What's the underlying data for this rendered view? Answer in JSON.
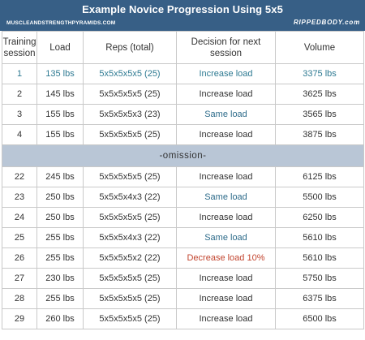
{
  "banner": {
    "title": "Example Novice Progression Using 5x5",
    "left_text": "MUSCLEANDSTRENGTHPYRAMIDS.COM",
    "right_text": "RIPPEDBODY.com"
  },
  "table": {
    "headers": [
      "Training session",
      "Load",
      "Reps (total)",
      "Decision for next session",
      "Volume"
    ],
    "rows_top": [
      {
        "session": "1",
        "load": "135 lbs",
        "reps": "5x5x5x5x5 (25)",
        "decision": "Increase load",
        "volume": "3375 lbs"
      },
      {
        "session": "2",
        "load": "145 lbs",
        "reps": "5x5x5x5x5 (25)",
        "decision": "Increase load",
        "volume": "3625 lbs"
      },
      {
        "session": "3",
        "load": "155 lbs",
        "reps": "5x5x5x5x3 (23)",
        "decision": "Same load",
        "volume": "3565 lbs"
      },
      {
        "session": "4",
        "load": "155 lbs",
        "reps": "5x5x5x5x5 (25)",
        "decision": "Increase load",
        "volume": "3875 lbs"
      }
    ],
    "omission_label": "-omission-",
    "rows_bottom": [
      {
        "session": "22",
        "load": "245 lbs",
        "reps": "5x5x5x5x5 (25)",
        "decision": "Increase load",
        "volume": "6125 lbs"
      },
      {
        "session": "23",
        "load": "250 lbs",
        "reps": "5x5x5x4x3 (22)",
        "decision": "Same load",
        "volume": "5500 lbs"
      },
      {
        "session": "24",
        "load": "250 lbs",
        "reps": "5x5x5x5x5 (25)",
        "decision": "Increase load",
        "volume": "6250 lbs"
      },
      {
        "session": "25",
        "load": "255 lbs",
        "reps": "5x5x5x4x3 (22)",
        "decision": "Same load",
        "volume": "5610 lbs"
      },
      {
        "session": "26",
        "load": "255 lbs",
        "reps": "5x5x5x5x2 (22)",
        "decision": "Decrease load 10%",
        "volume": "5610 lbs"
      },
      {
        "session": "27",
        "load": "230 lbs",
        "reps": "5x5x5x5x5 (25)",
        "decision": "Increase load",
        "volume": "5750 lbs"
      },
      {
        "session": "28",
        "load": "255 lbs",
        "reps": "5x5x5x5x5 (25)",
        "decision": "Increase load",
        "volume": "6375 lbs"
      },
      {
        "session": "29",
        "load": "260 lbs",
        "reps": "5x5x5x5x5 (25)",
        "decision": "Increase load",
        "volume": "6500 lbs"
      }
    ]
  },
  "colors": {
    "banner": "#375f86",
    "omission_row": "#b9c6d6",
    "same_load": "#2d6b8a",
    "decrease_load": "#c2452f"
  }
}
